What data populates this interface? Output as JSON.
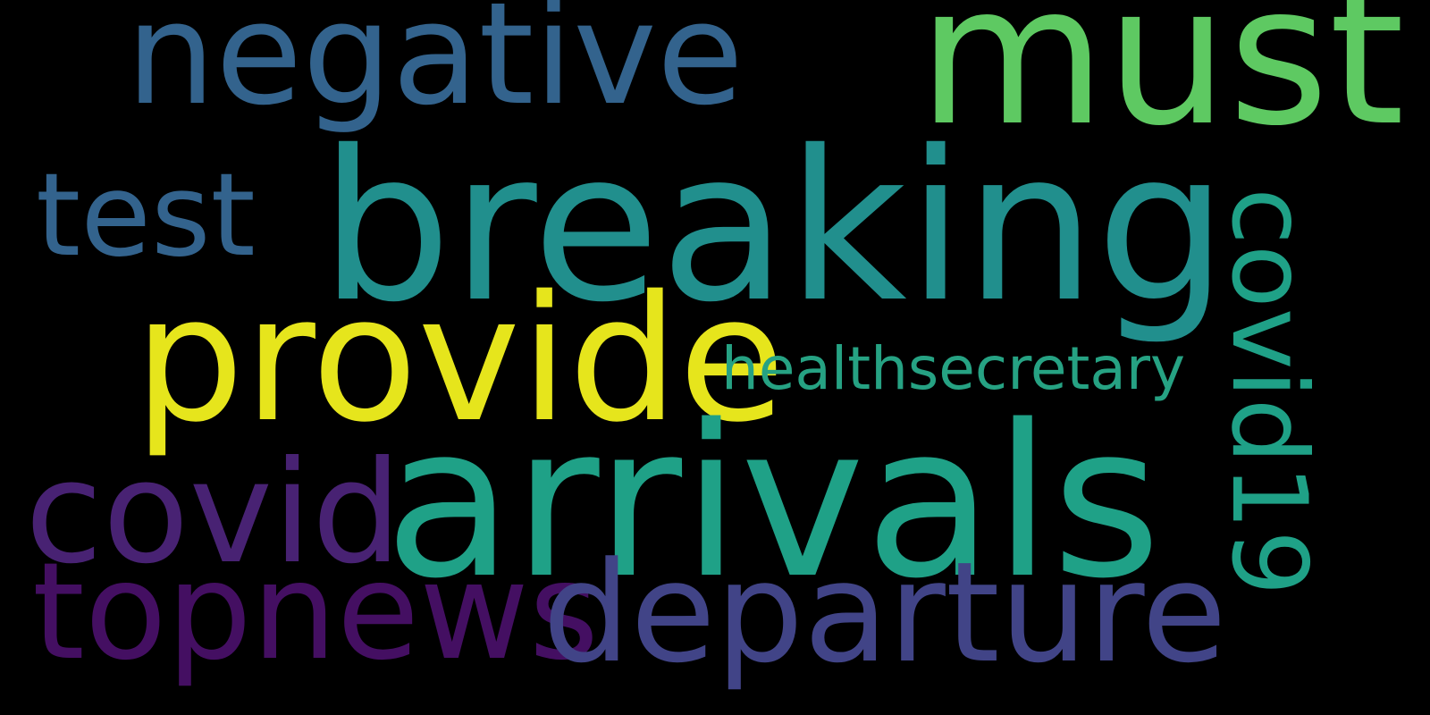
{
  "background": "#000000",
  "words": [
    {
      "key": "breaking",
      "text": "breaking",
      "color": "#218f8d"
    },
    {
      "key": "arrivals",
      "text": "arrivals",
      "color": "#1fa187"
    },
    {
      "key": "must",
      "text": "must",
      "color": "#5ec962"
    },
    {
      "key": "negative",
      "text": "negative",
      "color": "#33638d"
    },
    {
      "key": "provide",
      "text": "provide",
      "color": "#e6e51c"
    },
    {
      "key": "departure",
      "text": "departure",
      "color": "#414487"
    },
    {
      "key": "topnews",
      "text": "topnews",
      "color": "#440f62"
    },
    {
      "key": "covid",
      "text": "covid",
      "color": "#482273"
    },
    {
      "key": "test",
      "text": "test",
      "color": "#33638d"
    },
    {
      "key": "covid19",
      "text": "covid19",
      "color": "#1fa187"
    },
    {
      "key": "healthsecretary",
      "text": "healthsecretary",
      "color": "#26a283"
    }
  ]
}
